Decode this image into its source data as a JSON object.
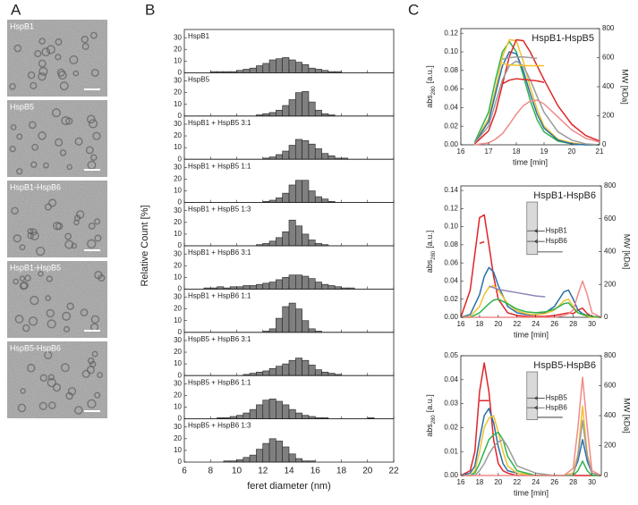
{
  "panel_labels": [
    "A",
    "B",
    "C"
  ],
  "em_images": [
    {
      "label": "HspB1"
    },
    {
      "label": "HspB5"
    },
    {
      "label": "HspB1-HspB6"
    },
    {
      "label": "HspB1-HspB5"
    },
    {
      "label": "HspB5-HspB6"
    }
  ],
  "chart_data": [
    {
      "type": "histogram",
      "xlabel": "feret diameter (nm)",
      "ylabel": "Relative Count [%]",
      "color": "#7f7f7f",
      "bins": [
        7,
        7.5,
        8,
        8.5,
        9,
        9.5,
        10,
        10.5,
        11,
        11.5,
        12,
        12.5,
        13,
        13.5,
        14,
        14.5,
        15,
        15.5,
        16,
        16.5,
        17,
        17.5,
        18,
        18.5,
        19,
        19.5,
        20,
        20.5,
        21
      ],
      "xlim": [
        6,
        22
      ],
      "xticks": [
        6,
        8,
        10,
        12,
        14,
        16,
        18,
        20,
        22
      ],
      "ylim": [
        0,
        37
      ],
      "yticks": [
        0,
        10,
        20,
        30
      ],
      "panels": [
        {
          "label": "HspB1",
          "counts": [
            0,
            0,
            1,
            1,
            1,
            1,
            2,
            3,
            4,
            6,
            8,
            11,
            12,
            13,
            11,
            9,
            7,
            4,
            3,
            2,
            1,
            1,
            0,
            0,
            0,
            0,
            0,
            0
          ]
        },
        {
          "label": "HspB5",
          "counts": [
            0,
            0,
            0,
            0,
            0,
            0,
            0,
            0,
            0,
            1,
            2,
            3,
            5,
            9,
            14,
            20,
            21,
            12,
            5,
            2,
            1,
            0,
            0,
            0,
            0,
            0,
            0,
            0
          ]
        },
        {
          "label": "HspB1 + HspB5 3:1",
          "counts": [
            0,
            0,
            0,
            0,
            0,
            0,
            0,
            0,
            0,
            0,
            1,
            2,
            4,
            7,
            12,
            17,
            16,
            13,
            9,
            5,
            3,
            1,
            1,
            0,
            0,
            0,
            0,
            0
          ]
        },
        {
          "label": "HspB1 + HspB5 1:1",
          "counts": [
            0,
            0,
            0,
            0,
            0,
            0,
            0,
            0,
            0,
            0,
            1,
            2,
            4,
            8,
            15,
            19,
            19,
            10,
            5,
            3,
            1,
            0,
            0,
            0,
            0,
            0,
            0,
            0
          ]
        },
        {
          "label": "HspB1 + HspB5 1:3",
          "counts": [
            0,
            0,
            0,
            0,
            0,
            0,
            0,
            0,
            0,
            1,
            2,
            4,
            7,
            12,
            22,
            17,
            10,
            5,
            2,
            1,
            0,
            0,
            0,
            0,
            0,
            0,
            0,
            0
          ]
        },
        {
          "label": "HspB1 + HspB6 3:1",
          "counts": [
            0,
            1,
            1,
            2,
            1,
            2,
            2,
            3,
            3,
            4,
            5,
            6,
            8,
            10,
            12,
            12,
            11,
            9,
            6,
            4,
            3,
            2,
            1,
            1,
            0,
            0,
            0,
            0
          ]
        },
        {
          "label": "HspB1 + HspB6 1:1",
          "counts": [
            0,
            0,
            0,
            0,
            0,
            0,
            0,
            0,
            0,
            0,
            1,
            3,
            12,
            22,
            25,
            20,
            10,
            3,
            1,
            0,
            0,
            0,
            0,
            0,
            0,
            0,
            0,
            0
          ]
        },
        {
          "label": "HspB5 + HspB6 3:1",
          "counts": [
            0,
            0,
            0,
            0,
            0,
            0,
            0,
            1,
            2,
            3,
            4,
            6,
            8,
            10,
            13,
            15,
            13,
            9,
            5,
            3,
            2,
            1,
            0,
            0,
            0,
            0,
            0,
            0
          ]
        },
        {
          "label": "HspB5 + HspB6 1:1",
          "counts": [
            0,
            0,
            0,
            1,
            1,
            2,
            3,
            5,
            8,
            12,
            16,
            17,
            15,
            12,
            8,
            5,
            3,
            2,
            1,
            1,
            0,
            0,
            0,
            0,
            0,
            0,
            1,
            0
          ]
        },
        {
          "label": "HspB5 + HspB6 1:3",
          "counts": [
            0,
            0,
            0,
            0,
            1,
            1,
            2,
            4,
            6,
            11,
            16,
            20,
            18,
            13,
            7,
            3,
            1,
            1,
            0,
            0,
            0,
            0,
            0,
            0,
            0,
            0,
            0,
            0
          ]
        }
      ]
    },
    {
      "type": "line",
      "title": "HspB1-HspB5",
      "xlabel": "time [min]",
      "ylabel": "abs",
      "ylabel_sub": "280",
      "ylabel_unit": "[a.u.]",
      "y2label": "MW [kDa]",
      "x": [
        16.5,
        17,
        17.25,
        17.5,
        17.75,
        18,
        18.25,
        18.5,
        18.75,
        19,
        19.5,
        20,
        20.5,
        21
      ],
      "xlim": [
        16,
        21
      ],
      "xticks": [
        16,
        17,
        18,
        19,
        20,
        21
      ],
      "ylim": [
        0,
        0.125
      ],
      "yticks": [
        {
          "value": 0,
          "label": "0.00"
        },
        {
          "value": 0.02,
          "label": "0.02"
        },
        {
          "value": 0.04,
          "label": "0.04"
        },
        {
          "value": 0.06,
          "label": "0.06"
        },
        {
          "value": 0.08,
          "label": "0.08"
        },
        {
          "value": 0.1,
          "label": "0.10"
        },
        {
          "value": 0.12,
          "label": "0.12"
        }
      ],
      "y2lim": [
        0,
        800
      ],
      "y2ticks": [
        0,
        200,
        400,
        600,
        800
      ],
      "series": [
        {
          "color": "#2eb34a",
          "values": [
            0.003,
            0.035,
            0.07,
            0.1,
            0.111,
            0.1,
            0.075,
            0.048,
            0.027,
            0.014,
            0.004,
            0.001,
            0,
            0
          ]
        },
        {
          "color": "#f2c12e",
          "values": [
            0.002,
            0.028,
            0.06,
            0.095,
            0.113,
            0.112,
            0.09,
            0.062,
            0.038,
            0.02,
            0.006,
            0.002,
            0,
            0
          ]
        },
        {
          "color": "#2a6fa8",
          "values": [
            0.002,
            0.025,
            0.055,
            0.085,
            0.1,
            0.098,
            0.08,
            0.055,
            0.033,
            0.018,
            0.005,
            0.001,
            0,
            0
          ]
        },
        {
          "color": "#e02427",
          "values": [
            0.001,
            0.015,
            0.035,
            0.065,
            0.095,
            0.113,
            0.112,
            0.1,
            0.085,
            0.07,
            0.042,
            0.022,
            0.01,
            0.004
          ]
        },
        {
          "color": "#9a9a9a",
          "values": [
            0.002,
            0.02,
            0.045,
            0.07,
            0.085,
            0.09,
            0.085,
            0.07,
            0.052,
            0.035,
            0.014,
            0.005,
            0.001,
            0
          ]
        },
        {
          "color": "#f08a8a",
          "values": [
            0,
            0.002,
            0.006,
            0.012,
            0.022,
            0.033,
            0.042,
            0.047,
            0.048,
            0.044,
            0.03,
            0.016,
            0.007,
            0.003
          ]
        },
        {
          "color": "#e02427",
          "axis": "y2",
          "values": [
            null,
            null,
            null,
            420,
            445,
            455,
            450,
            445,
            440,
            430,
            null,
            null,
            null,
            null
          ]
        },
        {
          "color": "#f2c12e",
          "axis": "y2",
          "values": [
            null,
            null,
            null,
            560,
            550,
            548,
            545,
            545,
            545,
            545,
            null,
            null,
            null,
            null
          ]
        },
        {
          "color": "#9a9a9a",
          "axis": "y2",
          "values": [
            null,
            null,
            null,
            590,
            600,
            605,
            605,
            600,
            595,
            null,
            null,
            null,
            null,
            null
          ]
        }
      ]
    },
    {
      "type": "line",
      "title": "HspB1-HspB6",
      "xlabel": "time [min]",
      "ylabel": "abs",
      "ylabel_sub": "280",
      "ylabel_unit": "[a.u.]",
      "y2label": "MW [kDa]",
      "gel_labels": [
        "HspB1",
        "HspB6"
      ],
      "x": [
        16,
        17,
        18,
        18.5,
        19,
        19.5,
        20,
        21,
        22,
        23,
        24,
        25,
        26,
        27,
        27.5,
        28,
        28.5,
        29,
        29.5,
        30,
        31
      ],
      "xlim": [
        16,
        31
      ],
      "xticks": [
        16,
        18,
        20,
        22,
        24,
        26,
        28,
        30
      ],
      "ylim": [
        0,
        0.145
      ],
      "yticks": [
        {
          "value": 0,
          "label": "0.00"
        },
        {
          "value": 0.02,
          "label": "0.02"
        },
        {
          "value": 0.04,
          "label": "0.04"
        },
        {
          "value": 0.06,
          "label": "0.06"
        },
        {
          "value": 0.08,
          "label": "0.08"
        },
        {
          "value": 0.1,
          "label": "0.10"
        },
        {
          "value": 0.12,
          "label": "0.12"
        },
        {
          "value": 0.14,
          "label": "0.14"
        }
      ],
      "y2lim": [
        0,
        800
      ],
      "y2ticks": [
        0,
        200,
        400,
        600,
        800
      ],
      "series": [
        {
          "color": "#e02427",
          "values": [
            0,
            0.03,
            0.11,
            0.113,
            0.08,
            0.045,
            0.02,
            0.005,
            0.002,
            0.001,
            0.001,
            0.001,
            0.002,
            0.004,
            0.005,
            0.004,
            0.008,
            0.01,
            0.004,
            0.001,
            0
          ]
        },
        {
          "color": "#2a6fa8",
          "values": [
            0,
            0.003,
            0.025,
            0.045,
            0.055,
            0.05,
            0.035,
            0.012,
            0.005,
            0.003,
            0.003,
            0.005,
            0.012,
            0.028,
            0.03,
            0.02,
            0.008,
            0.004,
            0.002,
            0.001,
            0
          ]
        },
        {
          "color": "#f2c12e",
          "values": [
            0,
            0.001,
            0.012,
            0.025,
            0.033,
            0.035,
            0.03,
            0.015,
            0.007,
            0.004,
            0.003,
            0.004,
            0.008,
            0.018,
            0.02,
            0.012,
            0.005,
            0.003,
            0.001,
            0,
            0
          ]
        },
        {
          "color": "#2eb34a",
          "values": [
            0,
            0,
            0.005,
            0.01,
            0.015,
            0.019,
            0.02,
            0.015,
            0.009,
            0.006,
            0.005,
            0.006,
            0.009,
            0.015,
            0.016,
            0.01,
            0.005,
            0.003,
            0.002,
            0.001,
            0
          ]
        },
        {
          "color": "#f08a8a",
          "values": [
            0,
            0,
            0,
            0,
            0,
            0,
            0,
            0,
            0,
            0,
            0,
            0,
            0,
            0.002,
            0.004,
            0.008,
            0.025,
            0.04,
            0.025,
            0.005,
            0
          ]
        },
        {
          "color": "#e02427",
          "axis": "y2",
          "values": [
            null,
            null,
            450,
            460,
            null,
            null,
            null,
            null,
            null,
            null,
            null,
            null,
            null,
            null,
            null,
            null,
            null,
            null,
            null,
            null,
            null
          ]
        },
        {
          "color": "#8f86b8",
          "axis": "y2",
          "values": [
            null,
            null,
            null,
            null,
            190,
            180,
            170,
            160,
            150,
            140,
            130,
            125,
            null,
            null,
            null,
            null,
            null,
            null,
            null,
            null,
            null
          ]
        }
      ]
    },
    {
      "type": "line",
      "title": "HspB5-HspB6",
      "xlabel": "time [min]",
      "ylabel": "abs",
      "ylabel_sub": "280",
      "ylabel_unit": "[a.u.]",
      "y2label": "MW [kDa]",
      "gel_labels": [
        "HspB5",
        "HspB6"
      ],
      "x": [
        16,
        17,
        17.5,
        18,
        18.5,
        19,
        19.5,
        20,
        20.5,
        21,
        22,
        24,
        26,
        27,
        28,
        28.5,
        29,
        29.5,
        30,
        31
      ],
      "xlim": [
        16,
        31
      ],
      "xticks": [
        16,
        18,
        20,
        22,
        24,
        26,
        28,
        30
      ],
      "ylim": [
        0,
        0.05
      ],
      "yticks": [
        {
          "value": 0,
          "label": "0.00"
        },
        {
          "value": 0.01,
          "label": "0.01"
        },
        {
          "value": 0.02,
          "label": "0.02"
        },
        {
          "value": 0.03,
          "label": "0.03"
        },
        {
          "value": 0.04,
          "label": "0.04"
        },
        {
          "value": 0.05,
          "label": "0.05"
        }
      ],
      "y2lim": [
        0,
        800
      ],
      "y2ticks": [
        0,
        200,
        400,
        600,
        800
      ],
      "series": [
        {
          "color": "#e02427",
          "values": [
            0,
            0.002,
            0.01,
            0.035,
            0.047,
            0.035,
            0.015,
            0.005,
            0.002,
            0.001,
            0,
            0,
            0,
            0,
            0,
            0,
            0,
            0,
            0,
            0
          ]
        },
        {
          "color": "#2a6fa8",
          "values": [
            0,
            0.001,
            0.004,
            0.015,
            0.025,
            0.028,
            0.022,
            0.012,
            0.005,
            0.002,
            0.001,
            0,
            0,
            0,
            0.001,
            0.006,
            0.015,
            0.006,
            0.001,
            0
          ]
        },
        {
          "color": "#f2c12e",
          "values": [
            0,
            0,
            0.002,
            0.01,
            0.02,
            0.024,
            0.025,
            0.018,
            0.01,
            0.004,
            0.001,
            0,
            0,
            0,
            0.001,
            0.009,
            0.029,
            0.009,
            0.001,
            0
          ]
        },
        {
          "color": "#2eb34a",
          "values": [
            0,
            0,
            0.001,
            0.005,
            0.01,
            0.015,
            0.017,
            0.018,
            0.015,
            0.008,
            0.002,
            0,
            0,
            0,
            0,
            0.002,
            0.006,
            0.002,
            0,
            0
          ]
        },
        {
          "color": "#9a9a9a",
          "values": [
            0,
            0,
            0,
            0.002,
            0.005,
            0.009,
            0.012,
            0.014,
            0.015,
            0.012,
            0.004,
            0.001,
            0,
            0,
            0,
            0.008,
            0.023,
            0.008,
            0.001,
            0
          ]
        },
        {
          "color": "#f08a8a",
          "values": [
            0,
            0,
            0,
            0,
            0,
            0,
            0,
            0,
            0,
            0,
            0,
            0,
            0,
            0,
            0.003,
            0.02,
            0.041,
            0.02,
            0.002,
            0
          ]
        },
        {
          "color": "#e02427",
          "axis": "y2",
          "values": [
            null,
            null,
            null,
            500,
            500,
            500,
            null,
            null,
            null,
            null,
            null,
            null,
            null,
            null,
            null,
            null,
            null,
            null,
            null,
            null
          ]
        }
      ]
    }
  ]
}
